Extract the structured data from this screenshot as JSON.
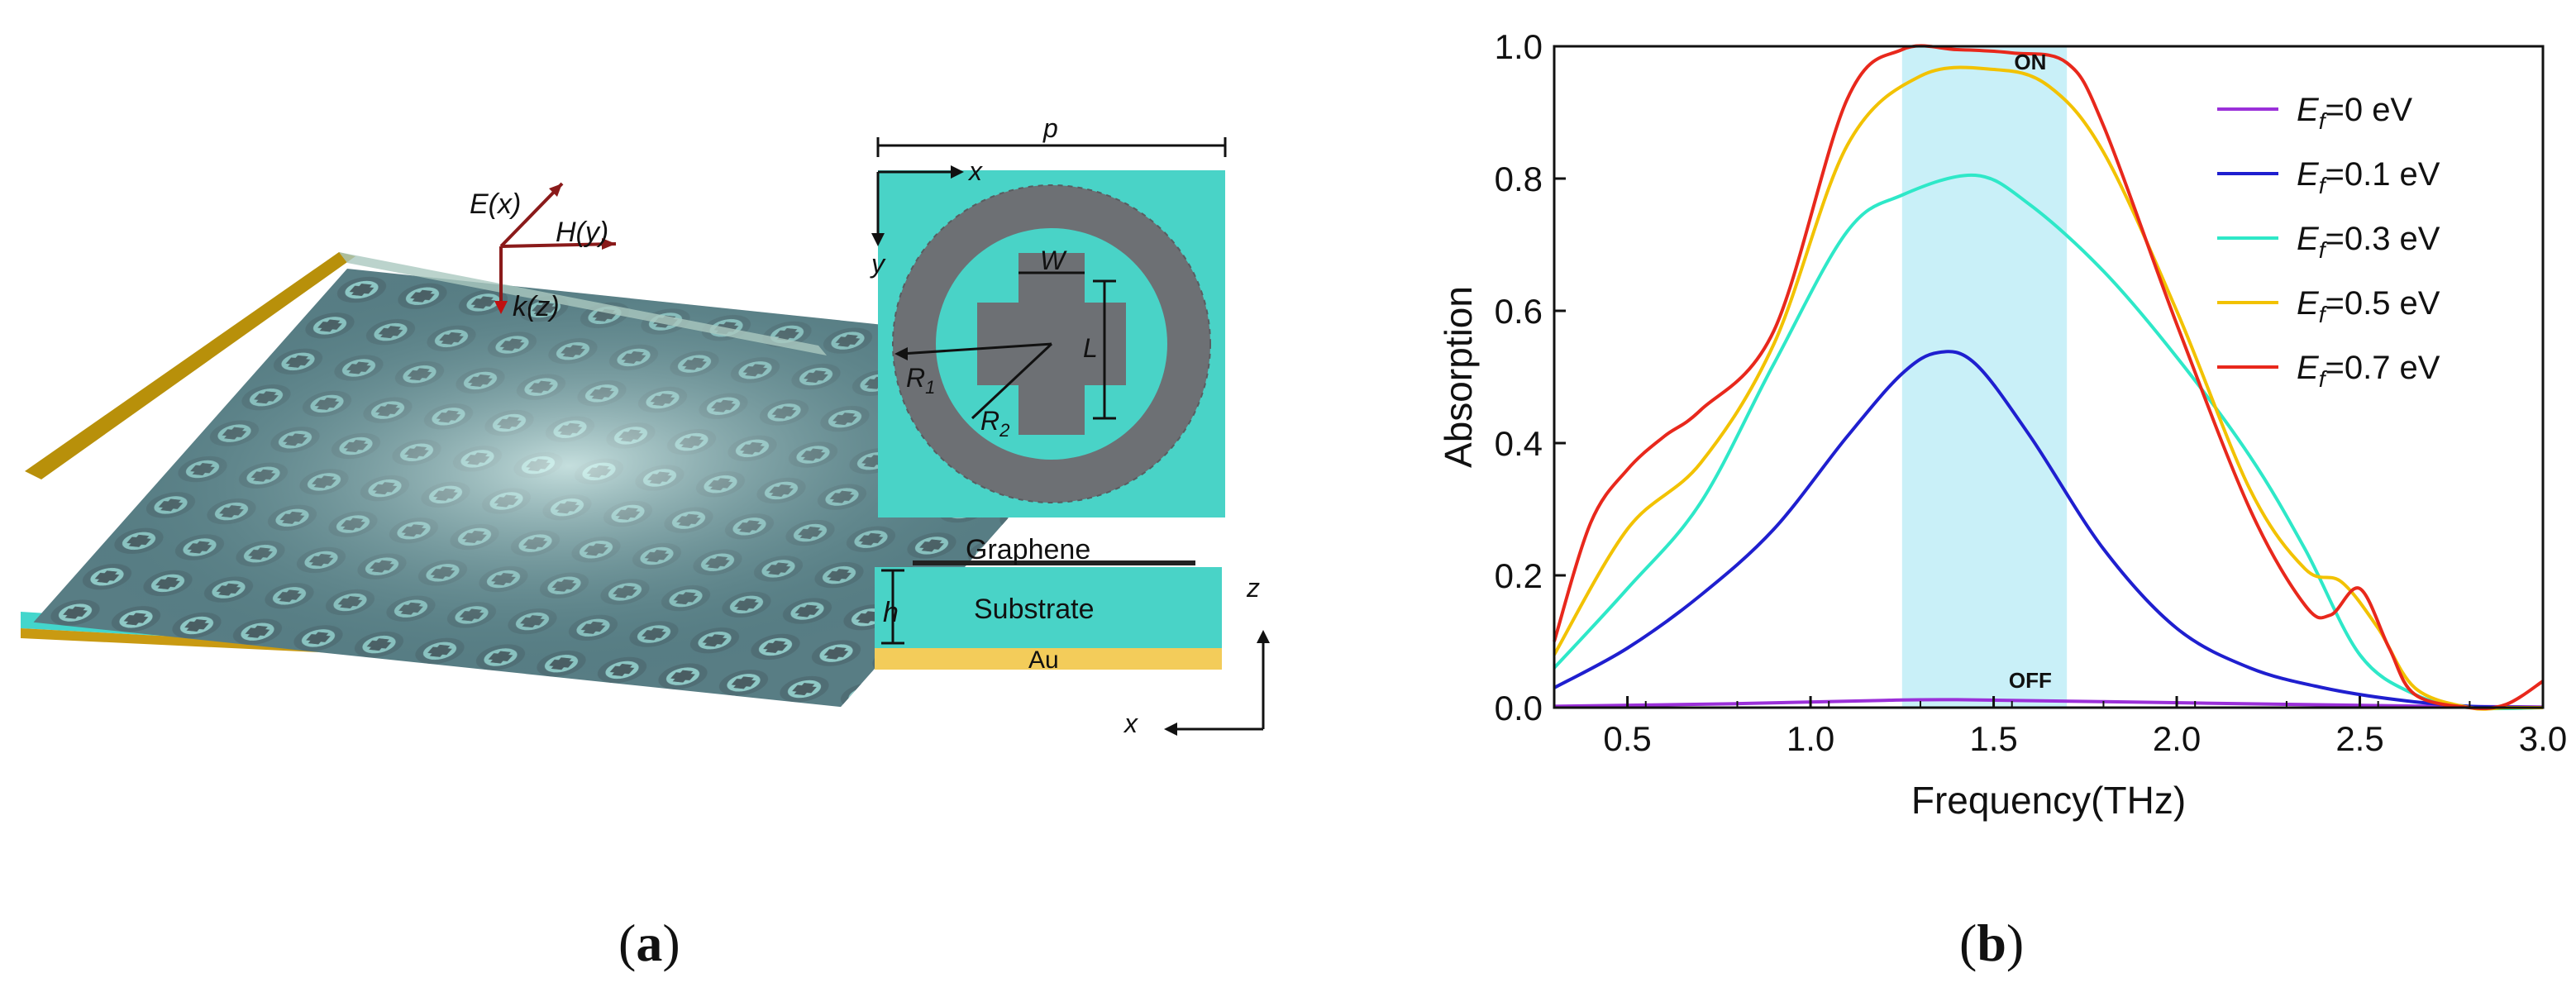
{
  "panel_a": {
    "caption_open": "(",
    "caption_letter": "a",
    "caption_close": ")",
    "axes_3d": {
      "e": "E(x)",
      "h": "H(y)",
      "k": "k(z)"
    },
    "unit_cell": {
      "p": "p",
      "x": "x",
      "y": "y",
      "w": "W",
      "l": "L",
      "r1": "R",
      "r1_sub": "1",
      "r2": "R",
      "r2_sub": "2"
    },
    "cross_section": {
      "graphene": "Graphene",
      "substrate": "Substrate",
      "au": "Au",
      "h": "h",
      "z": "z",
      "x": "x"
    }
  },
  "panel_b": {
    "caption_open": "(",
    "caption_letter": "b",
    "caption_close": ")",
    "on_label": "ON",
    "off_label": "OFF"
  },
  "chart_data": {
    "type": "line",
    "xlabel": "Frequency(THz)",
    "ylabel": "Absorption",
    "xlim": [
      0.3,
      3.0
    ],
    "ylim": [
      0.0,
      1.0
    ],
    "xticks": [
      "0.5",
      "1.0",
      "1.5",
      "2.0",
      "2.5",
      "3.0"
    ],
    "xtick_values": [
      0.5,
      1.0,
      1.5,
      2.0,
      2.5,
      3.0
    ],
    "yticks": [
      "0.0",
      "0.2",
      "0.4",
      "0.6",
      "0.8",
      "1.0"
    ],
    "ytick_values": [
      0.0,
      0.2,
      0.4,
      0.6,
      0.8,
      1.0
    ],
    "legend_position": "top-right",
    "highlight_band": [
      1.25,
      1.7
    ],
    "highlight_color": "#c9f0f8",
    "series": [
      {
        "name": "E_f=0 eV",
        "label_main": "E",
        "label_sub": "f",
        "label_rest": "=0 eV",
        "color": "#9b30d9",
        "x": [
          0.3,
          0.8,
          1.2,
          1.4,
          1.8,
          2.3,
          2.7,
          3.0
        ],
        "y": [
          0.002,
          0.006,
          0.011,
          0.012,
          0.009,
          0.005,
          0.002,
          0.001
        ]
      },
      {
        "name": "E_f=0.1 eV",
        "label_main": "E",
        "label_sub": "f",
        "label_rest": "=0.1 eV",
        "color": "#1f1fcf",
        "x": [
          0.3,
          0.5,
          0.7,
          0.9,
          1.1,
          1.25,
          1.35,
          1.45,
          1.6,
          1.8,
          2.0,
          2.2,
          2.4,
          2.6,
          2.8,
          3.0
        ],
        "y": [
          0.03,
          0.09,
          0.17,
          0.27,
          0.41,
          0.505,
          0.537,
          0.52,
          0.41,
          0.24,
          0.12,
          0.06,
          0.03,
          0.012,
          0.002,
          0.0
        ]
      },
      {
        "name": "E_f=0.3 eV",
        "label_main": "E",
        "label_sub": "f",
        "label_rest": "=0.3 eV",
        "color": "#2ee8c8",
        "x": [
          0.3,
          0.5,
          0.7,
          0.9,
          1.1,
          1.25,
          1.45,
          1.6,
          1.8,
          2.0,
          2.2,
          2.35,
          2.5,
          2.65,
          2.8,
          3.0
        ],
        "y": [
          0.06,
          0.18,
          0.31,
          0.52,
          0.72,
          0.775,
          0.805,
          0.76,
          0.66,
          0.53,
          0.38,
          0.24,
          0.08,
          0.02,
          0.0,
          0.0
        ]
      },
      {
        "name": "E_f=0.5 eV",
        "label_main": "E",
        "label_sub": "f",
        "label_rest": "=0.5 eV",
        "color": "#f2c200",
        "x": [
          0.3,
          0.5,
          0.7,
          0.9,
          1.1,
          1.3,
          1.5,
          1.65,
          1.8,
          2.0,
          2.2,
          2.35,
          2.45,
          2.55,
          2.65,
          2.8,
          2.9,
          3.0
        ],
        "y": [
          0.08,
          0.27,
          0.37,
          0.55,
          0.85,
          0.955,
          0.965,
          0.94,
          0.84,
          0.6,
          0.33,
          0.21,
          0.19,
          0.12,
          0.03,
          0.0,
          0.0,
          0.0
        ]
      },
      {
        "name": "E_f=0.7 eV",
        "label_main": "E",
        "label_sub": "f",
        "label_rest": "=0.7 eV",
        "color": "#e8281c",
        "x": [
          0.3,
          0.4,
          0.5,
          0.6,
          0.7,
          0.9,
          1.1,
          1.25,
          1.4,
          1.55,
          1.7,
          1.8,
          2.0,
          2.2,
          2.35,
          2.42,
          2.5,
          2.58,
          2.65,
          2.8,
          2.9,
          3.0
        ],
        "y": [
          0.1,
          0.28,
          0.36,
          0.41,
          0.45,
          0.57,
          0.92,
          0.995,
          0.995,
          0.99,
          0.975,
          0.88,
          0.58,
          0.3,
          0.155,
          0.14,
          0.18,
          0.09,
          0.02,
          0.0,
          0.005,
          0.04
        ]
      }
    ]
  }
}
